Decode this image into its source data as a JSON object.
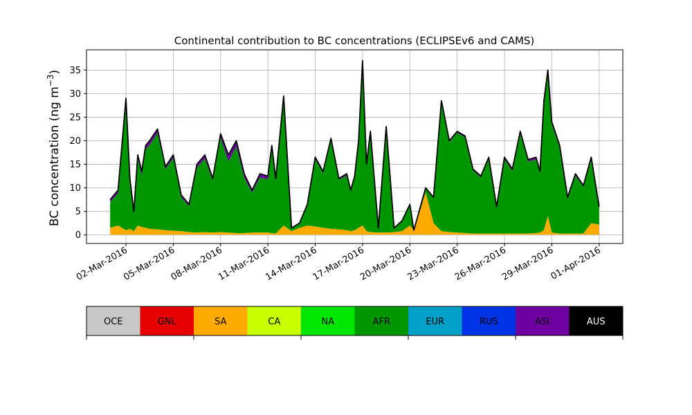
{
  "chart_data": {
    "type": "area",
    "title": "Continental contribution to BC concentrations (ECLIPSEv6 and CAMS)",
    "ylabel": "BC concentration (ng m",
    "ylabel_exp": "−3",
    "ylabel_close": ")",
    "xlabel": "",
    "ylim": [
      -1.8,
      39.3
    ],
    "yticks": [
      0,
      5,
      10,
      15,
      20,
      25,
      30,
      35
    ],
    "ytick_labels": [
      "0",
      "5",
      "10",
      "15",
      "20",
      "25",
      "30",
      "35"
    ],
    "xlim_days": [
      -2.5,
      31.5
    ],
    "xticks_days": [
      0,
      3,
      6,
      9,
      12,
      15,
      18,
      21,
      24,
      27,
      30
    ],
    "xtick_labels": [
      "02-Mar-2016",
      "05-Mar-2016",
      "08-Mar-2016",
      "11-Mar-2016",
      "14-Mar-2016",
      "17-Mar-2016",
      "20-Mar-2016",
      "23-Mar-2016",
      "26-Mar-2016",
      "29-Mar-2016",
      "01-Apr-2016"
    ],
    "grid": true,
    "x_dates": [
      "2016-03-01T00:00",
      "2016-03-01T12:00",
      "2016-03-02T00:00",
      "2016-03-02T06:00",
      "2016-03-02T12:00",
      "2016-03-02T18:00",
      "2016-03-03T00:00",
      "2016-03-03T06:00",
      "2016-03-03T12:00",
      "2016-03-04T00:00",
      "2016-03-04T12:00",
      "2016-03-05T00:00",
      "2016-03-05T12:00",
      "2016-03-06T00:00",
      "2016-03-06T12:00",
      "2016-03-07T00:00",
      "2016-03-07T12:00",
      "2016-03-08T00:00",
      "2016-03-08T12:00",
      "2016-03-09T00:00",
      "2016-03-09T12:00",
      "2016-03-10T00:00",
      "2016-03-10T12:00",
      "2016-03-11T00:00",
      "2016-03-11T06:00",
      "2016-03-11T12:00",
      "2016-03-12T00:00",
      "2016-03-12T12:00",
      "2016-03-13T00:00",
      "2016-03-13T12:00",
      "2016-03-14T00:00",
      "2016-03-14T12:00",
      "2016-03-15T00:00",
      "2016-03-15T12:00",
      "2016-03-16T00:00",
      "2016-03-16T06:00",
      "2016-03-16T12:00",
      "2016-03-16T18:00",
      "2016-03-17T00:00",
      "2016-03-17T06:00",
      "2016-03-17T12:00",
      "2016-03-18T00:00",
      "2016-03-18T12:00",
      "2016-03-19T00:00",
      "2016-03-19T12:00",
      "2016-03-20T00:00",
      "2016-03-20T06:00",
      "2016-03-20T12:00",
      "2016-03-21T00:00",
      "2016-03-21T12:00",
      "2016-03-22T00:00",
      "2016-03-22T12:00",
      "2016-03-23T00:00",
      "2016-03-23T12:00",
      "2016-03-24T00:00",
      "2016-03-24T12:00",
      "2016-03-25T00:00",
      "2016-03-25T12:00",
      "2016-03-26T00:00",
      "2016-03-26T12:00",
      "2016-03-27T00:00",
      "2016-03-27T12:00",
      "2016-03-28T00:00",
      "2016-03-28T06:00",
      "2016-03-28T12:00",
      "2016-03-28T18:00",
      "2016-03-29T00:00",
      "2016-03-29T12:00",
      "2016-03-30T00:00",
      "2016-03-30T12:00",
      "2016-03-31T00:00",
      "2016-03-31T12:00",
      "2016-04-01T00:00"
    ],
    "total": [
      7.5,
      9.5,
      29.0,
      12.0,
      5.0,
      17.0,
      13.5,
      19.0,
      20.0,
      22.5,
      14.5,
      17.0,
      8.5,
      6.5,
      15.0,
      17.0,
      12.0,
      21.5,
      17.0,
      20.0,
      13.0,
      9.5,
      13.0,
      12.5,
      19.0,
      12.0,
      29.5,
      1.5,
      2.5,
      6.5,
      16.5,
      13.5,
      20.5,
      12.0,
      13.0,
      9.5,
      12.5,
      20.0,
      37.0,
      15.0,
      22.0,
      1.5,
      23.0,
      1.5,
      3.0,
      6.5,
      1.0,
      4.0,
      10.0,
      8.0,
      28.5,
      20.0,
      22.0,
      21.0,
      14.0,
      12.5,
      16.5,
      6.0,
      16.5,
      14.0,
      22.0,
      16.0,
      16.5,
      13.5,
      28.5,
      35.0,
      24.0,
      19.0,
      8.0,
      13.0,
      10.5,
      16.5,
      6.0
    ],
    "asi_band": [
      0.5,
      0.7,
      0.6,
      0.6,
      0.3,
      0.7,
      0.9,
      0.8,
      0.9,
      0.9,
      0.5,
      0.7,
      0.5,
      0.4,
      0.7,
      0.8,
      0.5,
      0.9,
      1.4,
      1.3,
      0.9,
      0.5,
      0.8,
      0.7,
      0.8,
      0.4,
      0.7,
      0.1,
      0.2,
      0.2,
      0.4,
      0.4,
      0.5,
      0.3,
      0.4,
      0.3,
      0.3,
      0.4,
      0.6,
      0.4,
      0.3,
      0.1,
      0.3,
      0.1,
      0.1,
      0.1,
      0.1,
      0.1,
      0.2,
      0.2,
      0.4,
      0.3,
      0.3,
      0.3,
      0.3,
      0.3,
      0.4,
      0.2,
      0.4,
      0.4,
      0.5,
      0.4,
      0.5,
      0.4,
      0.6,
      0.6,
      0.6,
      0.5,
      0.3,
      0.4,
      0.3,
      0.4,
      0.2
    ],
    "sa": [
      1.5,
      2.0,
      1.0,
      1.3,
      0.8,
      2.0,
      1.7,
      1.5,
      1.3,
      1.2,
      1.0,
      0.9,
      0.8,
      0.6,
      0.5,
      0.6,
      0.5,
      0.6,
      0.5,
      0.4,
      0.4,
      0.5,
      0.5,
      0.5,
      0.4,
      0.3,
      2.0,
      0.8,
      1.5,
      2.0,
      1.8,
      1.5,
      1.3,
      1.2,
      1.0,
      0.8,
      1.0,
      1.5,
      2.0,
      0.8,
      0.6,
      0.5,
      0.5,
      0.6,
      0.8,
      2.0,
      1.0,
      3.5,
      9.0,
      2.5,
      0.8,
      0.6,
      0.5,
      0.4,
      0.3,
      0.3,
      0.3,
      0.3,
      0.3,
      0.3,
      0.3,
      0.3,
      0.4,
      0.5,
      1.0,
      4.0,
      0.5,
      0.3,
      0.3,
      0.3,
      0.3,
      2.5,
      2.2
    ],
    "series_names": [
      "OCE",
      "GNL",
      "SA",
      "CA",
      "NA",
      "AFR",
      "EUR",
      "RUS",
      "ASI",
      "AUS"
    ],
    "series_colors": [
      "#c8c8c8",
      "#e60000",
      "#ffaa00",
      "#c8ff00",
      "#00e600",
      "#009600",
      "#00a0c8",
      "#0032e6",
      "#6e00a0",
      "#000000"
    ]
  }
}
